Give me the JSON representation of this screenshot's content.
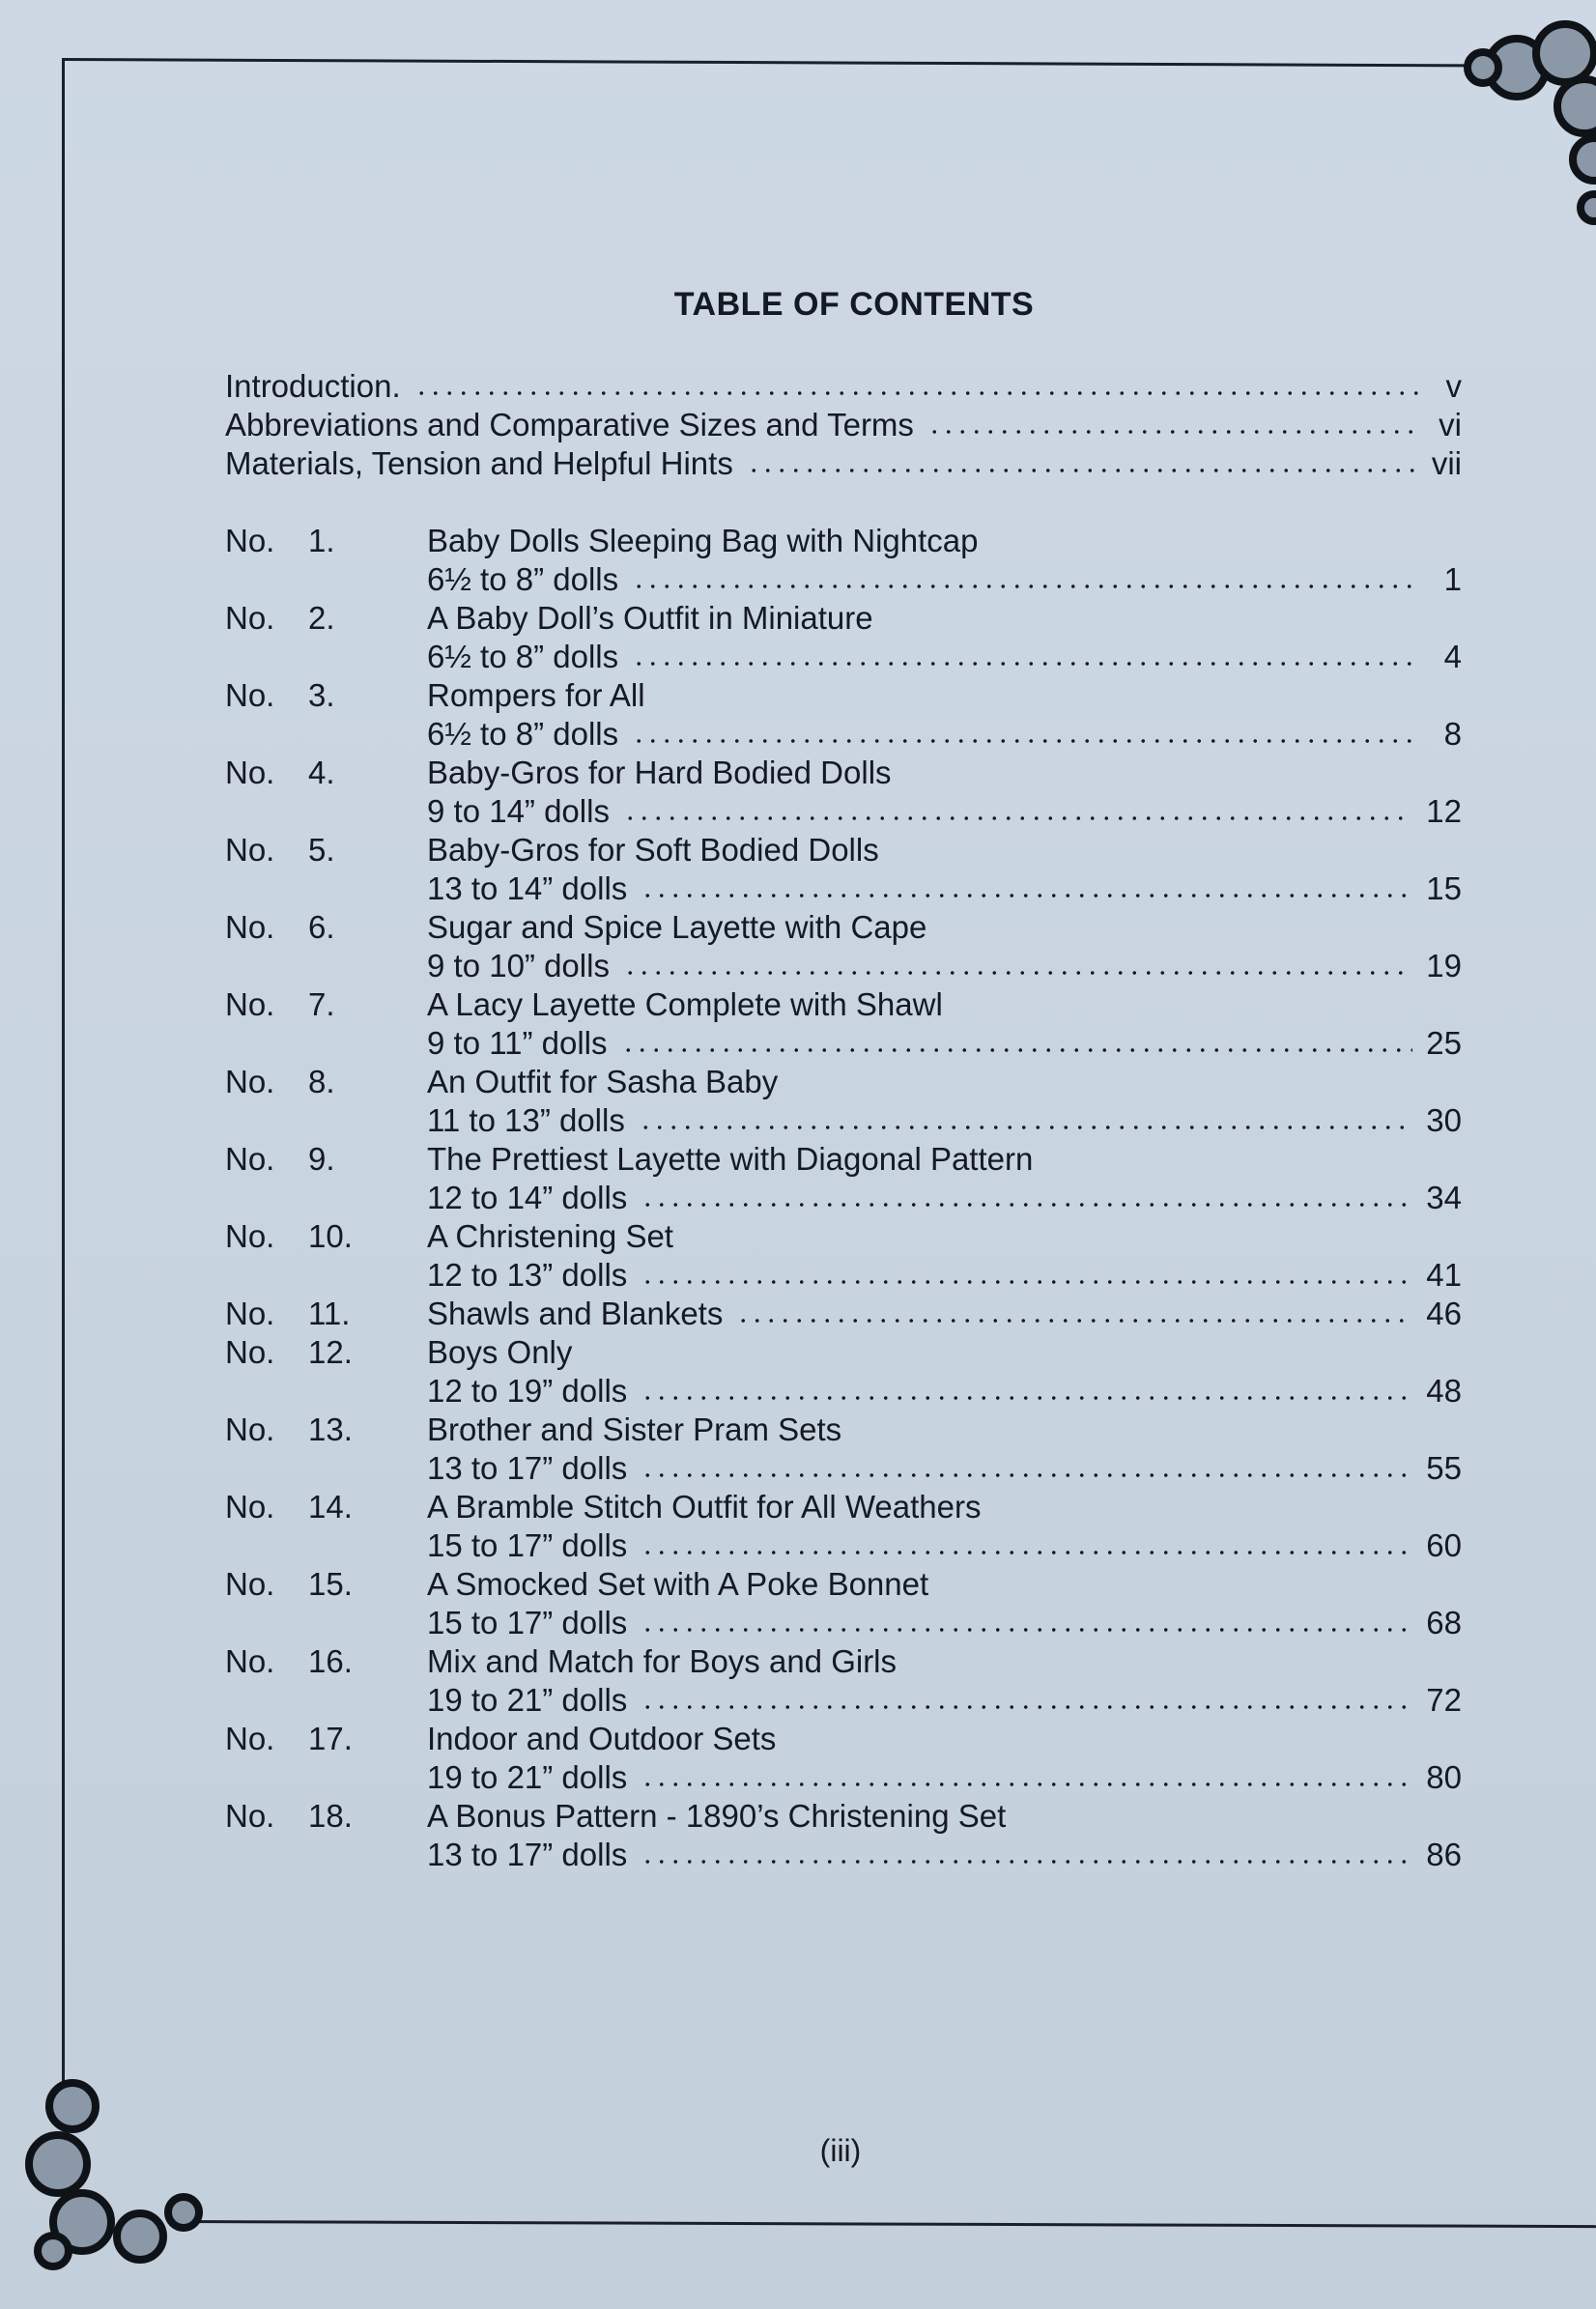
{
  "title": "TABLE OF CONTENTS",
  "front_matter": [
    {
      "label": "Introduction.",
      "page": "v"
    },
    {
      "label": "Abbreviations and Comparative Sizes and Terms",
      "page": "vi"
    },
    {
      "label": "Materials, Tension and Helpful Hints",
      "page": "vii"
    }
  ],
  "patterns": [
    {
      "no": "No.",
      "num": "1.",
      "title": "Baby Dolls Sleeping Bag with Nightcap",
      "size": "6½ to 8” dolls",
      "page": "1"
    },
    {
      "no": "No.",
      "num": "2.",
      "title": "A Baby Doll’s Outfit in Miniature",
      "size": "6½ to 8” dolls",
      "page": "4"
    },
    {
      "no": "No.",
      "num": "3.",
      "title": "Rompers for All",
      "size": "6½ to 8” dolls",
      "page": "8"
    },
    {
      "no": "No.",
      "num": "4.",
      "title": "Baby-Gros for Hard Bodied Dolls",
      "size": "9 to 14” dolls",
      "page": "12"
    },
    {
      "no": "No.",
      "num": "5.",
      "title": "Baby-Gros for Soft Bodied Dolls",
      "size": "13 to 14” dolls",
      "page": "15"
    },
    {
      "no": "No.",
      "num": "6.",
      "title": "Sugar and Spice Layette with Cape",
      "size": "9 to 10” dolls",
      "page": "19"
    },
    {
      "no": "No.",
      "num": "7.",
      "title": "A Lacy Layette Complete with Shawl",
      "size": "9 to 11” dolls",
      "page": "25"
    },
    {
      "no": "No.",
      "num": "8.",
      "title": "An Outfit for Sasha Baby",
      "size": "11 to 13” dolls",
      "page": "30"
    },
    {
      "no": "No.",
      "num": "9.",
      "title": "The Prettiest Layette with Diagonal Pattern",
      "size": "12 to 14” dolls",
      "page": "34"
    },
    {
      "no": "No.",
      "num": "10.",
      "title": "A Christening Set",
      "size": "12 to 13” dolls",
      "page": "41"
    },
    {
      "no": "No.",
      "num": "11.",
      "title": "Shawls and Blankets",
      "size": "",
      "page": "46"
    },
    {
      "no": "No.",
      "num": "12.",
      "title": "Boys Only",
      "size": "12 to 19” dolls",
      "page": "48"
    },
    {
      "no": "No.",
      "num": "13.",
      "title": "Brother and Sister Pram Sets",
      "size": "13 to 17” dolls",
      "page": "55"
    },
    {
      "no": "No.",
      "num": "14.",
      "title": "A Bramble Stitch Outfit for All Weathers",
      "size": "15 to 17” dolls",
      "page": "60"
    },
    {
      "no": "No.",
      "num": "15.",
      "title": "A Smocked Set with A Poke Bonnet",
      "size": "15 to 17” dolls",
      "page": "68"
    },
    {
      "no": "No.",
      "num": "16.",
      "title": "Mix and Match for Boys and Girls",
      "size": "19 to 21” dolls",
      "page": "72"
    },
    {
      "no": "No.",
      "num": "17.",
      "title": "Indoor and Outdoor Sets",
      "size": "19 to 21” dolls",
      "page": "80"
    },
    {
      "no": "No.",
      "num": "18.",
      "title": "A Bonus Pattern - 1890’s Christening Set",
      "size": "13 to 17” dolls",
      "page": "86"
    }
  ],
  "folio": "(iii)",
  "colors": {
    "paper": "#c9d5e1",
    "ink": "#141922"
  }
}
